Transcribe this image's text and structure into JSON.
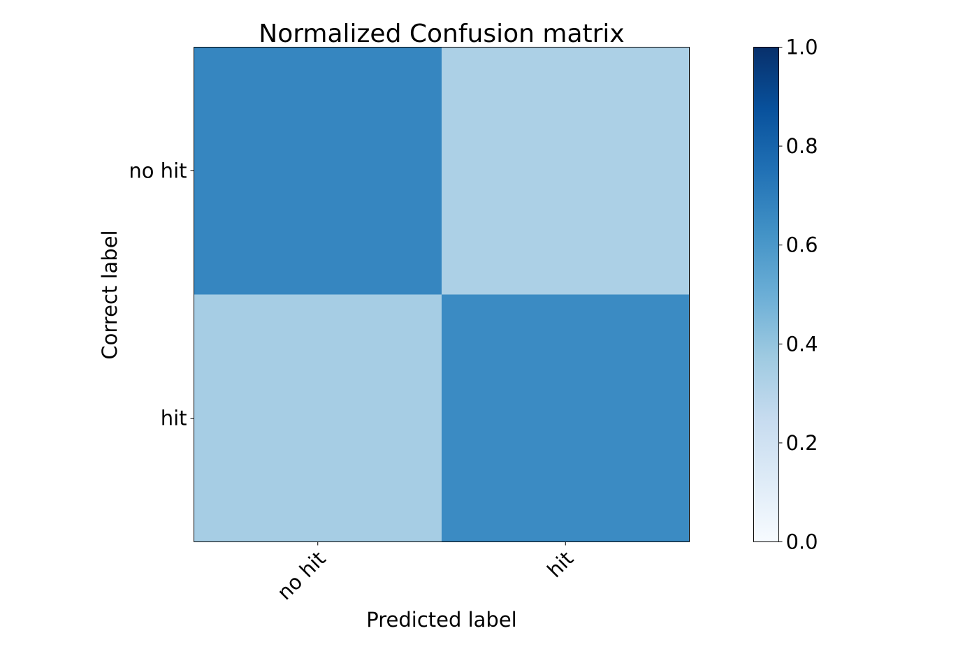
{
  "chart_data": {
    "type": "heatmap",
    "title": "Normalized Confusion matrix",
    "xlabel": "Predicted label",
    "ylabel": "Correct label",
    "x_categories": [
      "no hit",
      "hit"
    ],
    "y_categories": [
      "no hit",
      "hit"
    ],
    "values": [
      [
        0.67,
        0.33
      ],
      [
        0.35,
        0.65
      ]
    ],
    "colorbar": {
      "range": [
        0.0,
        1.0
      ],
      "ticks": [
        "0.0",
        "0.2",
        "0.4",
        "0.6",
        "0.8",
        "1.0"
      ],
      "colormap": "Blues",
      "colors": [
        "#f7fbff",
        "#deebf7",
        "#c6dbef",
        "#9ecae1",
        "#6baed6",
        "#4292c6",
        "#2171b5",
        "#08519c",
        "#08306b"
      ]
    },
    "grid": false
  }
}
